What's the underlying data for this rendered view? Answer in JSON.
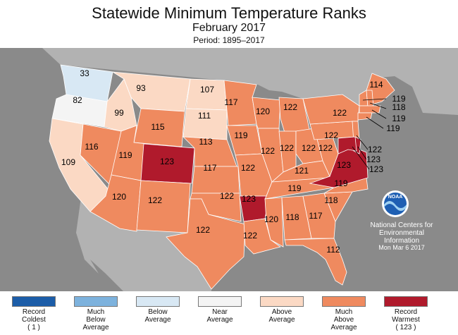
{
  "header": {
    "title": "Statewide Minimum Temperature Ranks",
    "subtitle": "February 2017",
    "period": "Period: 1895–2017"
  },
  "colors": {
    "ocean": "#8a8a8a",
    "foreign_land": "#b2b2b2",
    "record_coldest": "#1c5da8",
    "much_below": "#7db2dd",
    "below": "#d8e8f4",
    "near": "#f4f4f4",
    "above": "#fbd9c4",
    "much_above": "#ef8a5f",
    "record_warmest": "#b01a2c"
  },
  "map": {
    "states": [
      {
        "id": "WA",
        "rank": "33",
        "category": "below"
      },
      {
        "id": "OR",
        "rank": "82",
        "category": "near"
      },
      {
        "id": "CA",
        "rank": "109",
        "category": "above"
      },
      {
        "id": "NV",
        "rank": "116",
        "category": "much_above"
      },
      {
        "id": "ID",
        "rank": "99",
        "category": "above"
      },
      {
        "id": "MT",
        "rank": "93",
        "category": "above"
      },
      {
        "id": "WY",
        "rank": "115",
        "category": "much_above"
      },
      {
        "id": "UT",
        "rank": "119",
        "category": "much_above"
      },
      {
        "id": "AZ",
        "rank": "120",
        "category": "much_above"
      },
      {
        "id": "CO",
        "rank": "123",
        "category": "record_warmest"
      },
      {
        "id": "NM",
        "rank": "122",
        "category": "much_above"
      },
      {
        "id": "ND",
        "rank": "107",
        "category": "above"
      },
      {
        "id": "SD",
        "rank": "111",
        "category": "above"
      },
      {
        "id": "NE",
        "rank": "113",
        "category": "much_above"
      },
      {
        "id": "KS",
        "rank": "117",
        "category": "much_above"
      },
      {
        "id": "OK",
        "rank": "122",
        "category": "much_above"
      },
      {
        "id": "TX",
        "rank": "122",
        "category": "much_above"
      },
      {
        "id": "MN",
        "rank": "117",
        "category": "much_above"
      },
      {
        "id": "IA",
        "rank": "119",
        "category": "much_above"
      },
      {
        "id": "MO",
        "rank": "122",
        "category": "much_above"
      },
      {
        "id": "AR",
        "rank": "123",
        "category": "record_warmest"
      },
      {
        "id": "LA",
        "rank": "122",
        "category": "much_above"
      },
      {
        "id": "WI",
        "rank": "120",
        "category": "much_above"
      },
      {
        "id": "IL",
        "rank": "122",
        "category": "much_above"
      },
      {
        "id": "MI",
        "rank": "122",
        "category": "much_above"
      },
      {
        "id": "IN",
        "rank": "122",
        "category": "much_above"
      },
      {
        "id": "OH",
        "rank": "122",
        "category": "much_above"
      },
      {
        "id": "KY",
        "rank": "121",
        "category": "much_above"
      },
      {
        "id": "TN",
        "rank": "119",
        "category": "much_above"
      },
      {
        "id": "MS",
        "rank": "120",
        "category": "much_above"
      },
      {
        "id": "AL",
        "rank": "118",
        "category": "much_above"
      },
      {
        "id": "GA",
        "rank": "117",
        "category": "much_above"
      },
      {
        "id": "FL",
        "rank": "112",
        "category": "much_above"
      },
      {
        "id": "SC",
        "rank": "118",
        "category": "much_above"
      },
      {
        "id": "NC",
        "rank": "119",
        "category": "much_above"
      },
      {
        "id": "VA",
        "rank": "123",
        "category": "record_warmest"
      },
      {
        "id": "WV",
        "rank": "122",
        "category": "much_above"
      },
      {
        "id": "PA",
        "rank": "122",
        "category": "much_above"
      },
      {
        "id": "NY",
        "rank": "122",
        "category": "much_above"
      },
      {
        "id": "ME",
        "rank": "114",
        "category": "much_above"
      },
      {
        "id": "VT",
        "rank": "119",
        "category": "much_above"
      },
      {
        "id": "NH",
        "rank": "118",
        "category": "much_above"
      },
      {
        "id": "MA",
        "rank": "119",
        "category": "much_above"
      },
      {
        "id": "CT",
        "rank": "119",
        "category": "much_above"
      },
      {
        "id": "NJ",
        "rank": "122",
        "category": "much_above"
      },
      {
        "id": "DE",
        "rank": "123",
        "category": "record_warmest"
      },
      {
        "id": "MD",
        "rank": "123",
        "category": "record_warmest"
      }
    ]
  },
  "credit": {
    "logo_text": "NOAA",
    "line1": "National Centers for",
    "line2": "Environmental",
    "line3": "Information",
    "date": "Mon Mar  6 2017"
  },
  "legend": [
    {
      "label": "Record\nColdest\n( 1 )",
      "color_key": "record_coldest"
    },
    {
      "label": "Much\nBelow\nAverage",
      "color_key": "much_below"
    },
    {
      "label": "Below\nAverage",
      "color_key": "below"
    },
    {
      "label": "Near\nAverage",
      "color_key": "near"
    },
    {
      "label": "Above\nAverage",
      "color_key": "above"
    },
    {
      "label": "Much\nAbove\nAverage",
      "color_key": "much_above"
    },
    {
      "label": "Record\nWarmest\n( 123 )",
      "color_key": "record_warmest"
    }
  ]
}
